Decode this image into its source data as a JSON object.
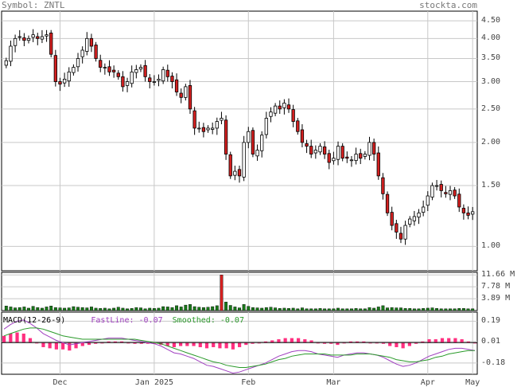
{
  "header": {
    "symbol_label": "Symbol: ZNTL",
    "source": "stockta.com"
  },
  "price_axis": {
    "ticks": [
      "4.50",
      "4.00",
      "3.50",
      "3.00",
      "2.50",
      "2.00",
      "1.50",
      "1.00"
    ],
    "scale": "log",
    "range": [
      0.85,
      4.8
    ]
  },
  "volume_axis": {
    "ticks": [
      "11.66 M",
      "7.78 M",
      "3.89 M"
    ]
  },
  "macd_axis": {
    "ticks": [
      "0.19",
      "0.01",
      "-0.18"
    ]
  },
  "x_axis": {
    "ticks": [
      "Dec",
      "Jan 2025",
      "Feb",
      "Mar",
      "Apr",
      "May"
    ]
  },
  "macd_legend": {
    "name": "MACD(12-26-9)",
    "fast": "FastLine: -0.07",
    "smoothed": "Smoothed: -0.07"
  },
  "colors": {
    "up": "#ffffff",
    "down": "#d42020",
    "volume": "#1a7a1a",
    "volume_spike": "#d42020",
    "fast_line": "#a040c0",
    "smoothed_line": "#2a9a2a",
    "histogram": "#ff2f7f",
    "grid": "#c8c8c8"
  },
  "chart_data": [
    {
      "type": "candlestick",
      "title": "ZNTL",
      "note": "daily OHLC, approx Nov 2024 - May 2025",
      "ylim": [
        0.85,
        4.8
      ],
      "scale": "log",
      "close": [
        3.45,
        3.8,
        4.0,
        4.05,
        3.95,
        4.0,
        4.1,
        4.0,
        4.05,
        4.1,
        3.6,
        3.0,
        2.95,
        3.05,
        3.2,
        3.3,
        3.5,
        3.7,
        4.0,
        3.8,
        3.5,
        3.3,
        3.3,
        3.2,
        3.2,
        3.1,
        2.9,
        3.0,
        3.2,
        3.25,
        3.3,
        3.1,
        3.0,
        3.0,
        3.05,
        3.25,
        3.1,
        3.0,
        2.8,
        2.7,
        2.9,
        2.5,
        2.2,
        2.2,
        2.15,
        2.2,
        2.2,
        2.3,
        2.35,
        1.85,
        1.6,
        1.65,
        1.6,
        2.0,
        2.15,
        1.85,
        1.9,
        2.1,
        2.35,
        2.45,
        2.55,
        2.5,
        2.6,
        2.5,
        2.3,
        2.15,
        2.0,
        1.95,
        1.85,
        1.9,
        1.95,
        1.85,
        1.75,
        1.8,
        1.95,
        1.8,
        1.8,
        1.78,
        1.85,
        1.8,
        1.85,
        2.0,
        1.85,
        1.6,
        1.42,
        1.25,
        1.15,
        1.1,
        1.05,
        1.15,
        1.2,
        1.22,
        1.25,
        1.3,
        1.4,
        1.5,
        1.5,
        1.45,
        1.42,
        1.45,
        1.4,
        1.3,
        1.25,
        1.23,
        1.26
      ]
    },
    {
      "type": "bar",
      "title": "Volume",
      "ylim": [
        0,
        12
      ],
      "values": [
        1.5,
        1.2,
        0.9,
        1.0,
        1.2,
        0.8,
        1.4,
        1.0,
        0.8,
        1.2,
        1.5,
        1.0,
        0.9,
        0.8,
        0.9,
        1.3,
        1.1,
        1.0,
        0.9,
        1.2,
        0.8,
        0.7,
        0.8,
        0.6,
        0.8,
        1.1,
        0.8,
        0.6,
        0.7,
        1.0,
        0.9,
        0.6,
        0.8,
        0.7,
        0.8,
        1.3,
        1.2,
        1.0,
        1.6,
        1.2,
        1.8,
        2.0,
        1.3,
        1.1,
        1.0,
        1.1,
        1.3,
        1.6,
        11.66,
        2.8,
        1.7,
        1.2,
        0.9,
        2.0,
        1.4,
        1.0,
        0.9,
        0.8,
        1.0,
        1.1,
        0.9,
        0.7,
        0.8,
        0.7,
        0.8,
        0.6,
        0.9,
        0.6,
        0.6,
        0.6,
        0.7,
        0.6,
        0.6,
        0.6,
        0.8,
        0.6,
        0.6,
        0.6,
        0.7,
        0.6,
        0.6,
        1.0,
        0.8,
        1.2,
        1.6,
        0.9,
        1.0,
        0.9,
        0.9,
        0.7,
        0.7,
        0.6,
        0.6,
        0.7,
        0.8,
        0.9,
        0.7,
        0.6,
        0.6,
        0.6,
        0.6,
        0.7,
        0.7,
        0.6,
        0.6
      ]
    },
    {
      "type": "line",
      "title": "MACD(12-26-9)",
      "ylim": [
        -0.28,
        0.27
      ],
      "series": [
        {
          "name": "FastLine",
          "values": [
            0.12,
            0.16,
            0.19,
            0.2,
            0.17,
            0.13,
            0.08,
            0.05,
            0.02,
            0.0,
            -0.02,
            -0.01,
            0.0,
            0.01,
            0.02,
            0.03,
            0.04,
            0.04,
            0.04,
            0.03,
            0.02,
            0.01,
            0.0,
            -0.01,
            -0.03,
            -0.06,
            -0.09,
            -0.1,
            -0.12,
            -0.14,
            -0.17,
            -0.2,
            -0.21,
            -0.23,
            -0.25,
            -0.27,
            -0.26,
            -0.24,
            -0.22,
            -0.2,
            -0.18,
            -0.15,
            -0.12,
            -0.1,
            -0.08,
            -0.07,
            -0.07,
            -0.08,
            -0.1,
            -0.11,
            -0.12,
            -0.13,
            -0.11,
            -0.1,
            -0.09,
            -0.09,
            -0.1,
            -0.11,
            -0.13,
            -0.16,
            -0.19,
            -0.21,
            -0.2,
            -0.18,
            -0.15,
            -0.12,
            -0.1,
            -0.08,
            -0.06,
            -0.05,
            -0.05,
            -0.06,
            -0.07
          ]
        },
        {
          "name": "Smoothed",
          "values": [
            0.06,
            0.08,
            0.1,
            0.12,
            0.13,
            0.13,
            0.12,
            0.1,
            0.08,
            0.06,
            0.05,
            0.04,
            0.03,
            0.03,
            0.03,
            0.03,
            0.03,
            0.03,
            0.03,
            0.03,
            0.03,
            0.02,
            0.01,
            0.0,
            -0.01,
            -0.03,
            -0.05,
            -0.07,
            -0.09,
            -0.11,
            -0.13,
            -0.15,
            -0.17,
            -0.18,
            -0.2,
            -0.21,
            -0.22,
            -0.22,
            -0.21,
            -0.2,
            -0.19,
            -0.17,
            -0.15,
            -0.14,
            -0.12,
            -0.11,
            -0.1,
            -0.1,
            -0.1,
            -0.1,
            -0.11,
            -0.11,
            -0.11,
            -0.11,
            -0.1,
            -0.1,
            -0.1,
            -0.11,
            -0.12,
            -0.13,
            -0.15,
            -0.16,
            -0.17,
            -0.17,
            -0.16,
            -0.15,
            -0.13,
            -0.12,
            -0.1,
            -0.09,
            -0.08,
            -0.07,
            -0.07
          ]
        }
      ]
    }
  ]
}
